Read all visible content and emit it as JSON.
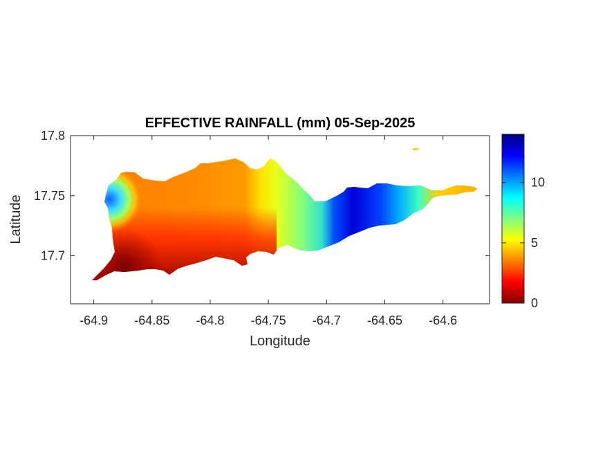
{
  "chart_data": {
    "type": "heatmap",
    "title": "EFFECTIVE RAINFALL (mm) 05-Sep-2025",
    "xlabel": "Longitude",
    "ylabel": "Latitude",
    "xlim": [
      -64.92,
      -64.56
    ],
    "ylim": [
      17.66,
      17.8
    ],
    "x_ticks": [
      -64.9,
      -64.85,
      -64.8,
      -64.75,
      -64.7,
      -64.65,
      -64.6
    ],
    "x_tick_labels": [
      "-64.9",
      "-64.85",
      "-64.8",
      "-64.75",
      "-64.7",
      "-64.65",
      "-64.6"
    ],
    "y_ticks": [
      17.7,
      17.75,
      17.8
    ],
    "y_tick_labels": [
      "17.7",
      "17.75",
      "17.8"
    ],
    "colorbar": {
      "colormap": "jet",
      "range": [
        0,
        14
      ],
      "ticks": [
        0,
        5,
        10
      ],
      "tick_labels": [
        "0",
        "5",
        "10"
      ]
    },
    "rainfall_profile": {
      "description_lon": [
        -64.905,
        -64.88,
        -64.86,
        -64.84,
        -64.8,
        -64.77,
        -64.75,
        -64.73,
        -64.71,
        -64.7,
        -64.68,
        -64.66,
        -64.64,
        -64.62,
        -64.6,
        -64.58,
        -64.565
      ],
      "values_mm": [
        4.0,
        3.5,
        3.5,
        3.7,
        3.7,
        4.2,
        6.0,
        7.8,
        9.5,
        12.5,
        13.0,
        12.0,
        10.0,
        8.0,
        5.5,
        4.5,
        4.0
      ]
    },
    "grid": false,
    "colorbar_position": "right"
  }
}
